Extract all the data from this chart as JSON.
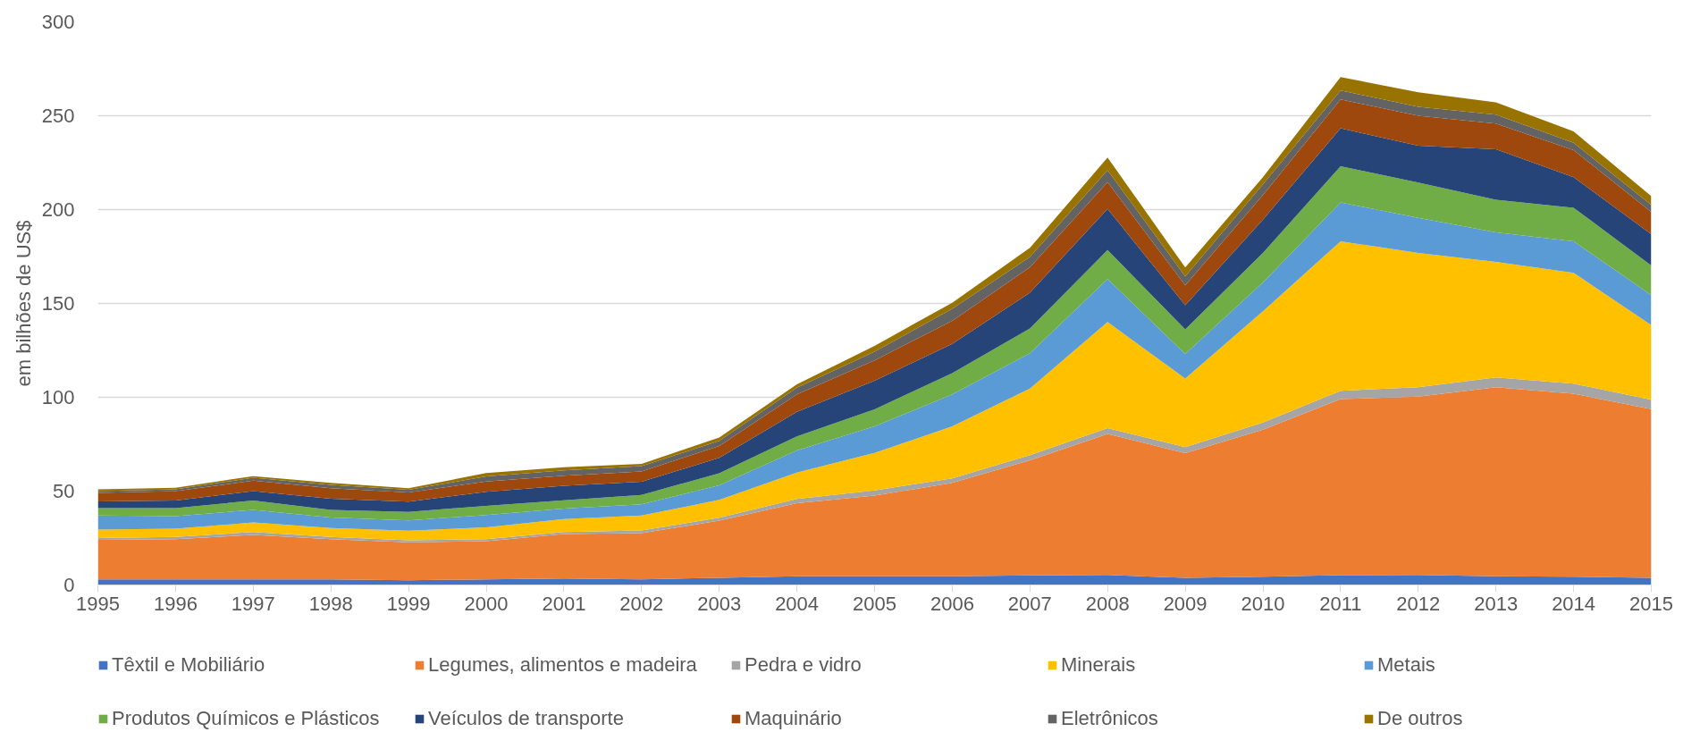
{
  "chart_data": {
    "type": "area",
    "stacked": true,
    "ylabel": "em bilhões de US$",
    "x": [
      1995,
      1996,
      1997,
      1998,
      1999,
      2000,
      2001,
      2002,
      2003,
      2004,
      2005,
      2006,
      2007,
      2008,
      2009,
      2010,
      2011,
      2012,
      2013,
      2014,
      2015
    ],
    "xlim": [
      1995,
      2015
    ],
    "xticks": [
      1995,
      1996,
      1997,
      1998,
      1999,
      2000,
      2001,
      2002,
      2003,
      2004,
      2005,
      2006,
      2007,
      2008,
      2009,
      2010,
      2011,
      2012,
      2013,
      2014,
      2015
    ],
    "ylim": [
      0,
      300
    ],
    "yticks": [
      0,
      50,
      100,
      150,
      200,
      250,
      300
    ],
    "grid": "y",
    "legend": "bottom",
    "series": [
      {
        "name": "Têxtil e Mobiliário",
        "color": "#4472c4",
        "values": [
          3,
          3,
          3,
          3,
          2.5,
          3,
          3.5,
          3,
          3.8,
          4.7,
          4.7,
          4.7,
          5.1,
          5.3,
          3.8,
          4.4,
          5.2,
          5.4,
          4.6,
          4.4,
          3.8
        ]
      },
      {
        "name": "Legumes, alimentos e madeira",
        "color": "#ed7d31",
        "values": [
          21,
          21.4,
          23.7,
          21.4,
          20.2,
          20.3,
          23.6,
          24.6,
          30.5,
          38.9,
          42.9,
          49.7,
          61.3,
          75.2,
          66.4,
          78.3,
          93.8,
          95,
          100.8,
          97.5,
          89.9
        ]
      },
      {
        "name": "Pedra e vidro",
        "color": "#a5a5a5",
        "values": [
          1,
          1.2,
          1.5,
          1.2,
          1.1,
          1.1,
          1.1,
          1.4,
          1.5,
          2.2,
          2.8,
          2.4,
          2.8,
          3.1,
          3.3,
          3.8,
          4.5,
          5,
          5.2,
          5.4,
          5
        ]
      },
      {
        "name": "Minerais",
        "color": "#ffc000",
        "values": [
          4.5,
          4.4,
          5.1,
          4.8,
          5.1,
          6.3,
          6.9,
          8,
          9.5,
          14.1,
          20,
          27.7,
          35.5,
          56.5,
          36.5,
          59.3,
          79.6,
          71.5,
          61.5,
          59,
          39.8
        ]
      },
      {
        "name": "Metais",
        "color": "#5b9bd5",
        "values": [
          7.5,
          6.7,
          6.7,
          5.6,
          5.5,
          6.6,
          5.6,
          6,
          7.8,
          11.8,
          14.1,
          17,
          18.7,
          22.9,
          13.1,
          15.4,
          20.7,
          18.7,
          15.8,
          16.8,
          15.9
        ]
      },
      {
        "name": "Produtos Químicos e Plásticos",
        "color": "#70ad47",
        "values": [
          4,
          4.3,
          5,
          4,
          4.5,
          4.9,
          4.4,
          5,
          6.4,
          7.5,
          9.1,
          11.3,
          13.3,
          15.5,
          13.1,
          15.7,
          19.3,
          18.8,
          17.3,
          17.9,
          15.8
        ]
      },
      {
        "name": "Veículos de transporte",
        "color": "#264478",
        "values": [
          3.5,
          4,
          5,
          6,
          5.5,
          7.4,
          7.8,
          7,
          8.2,
          13.1,
          15.2,
          15.7,
          19,
          21.9,
          12.8,
          17.7,
          20.2,
          19.6,
          26.9,
          16.3,
          16.7
        ]
      },
      {
        "name": "Maquinário",
        "color": "#9e480e",
        "values": [
          4.5,
          5,
          5.6,
          5.6,
          4.9,
          5.5,
          5.3,
          5.5,
          6.4,
          9.2,
          10.9,
          12.2,
          13.6,
          14.2,
          10.6,
          13.1,
          15.4,
          16,
          13.7,
          14.4,
          11.8
        ]
      },
      {
        "name": "Eletrônicos",
        "color": "#636363",
        "values": [
          1,
          1,
          1.5,
          1.7,
          1.4,
          2.7,
          2.9,
          2.8,
          2.7,
          3.6,
          4.6,
          6.4,
          5.5,
          6.4,
          4.8,
          5.8,
          4.8,
          4.8,
          4.8,
          3.9,
          3.8
        ]
      },
      {
        "name": "De outros",
        "color": "#997300",
        "values": [
          1,
          0.8,
          0.9,
          1.1,
          0.9,
          1.8,
          1.6,
          1.2,
          1.8,
          1.8,
          3.1,
          3.3,
          4.8,
          6.7,
          4.8,
          3.8,
          7.1,
          7.7,
          6.5,
          6.1,
          4.6
        ]
      }
    ]
  }
}
